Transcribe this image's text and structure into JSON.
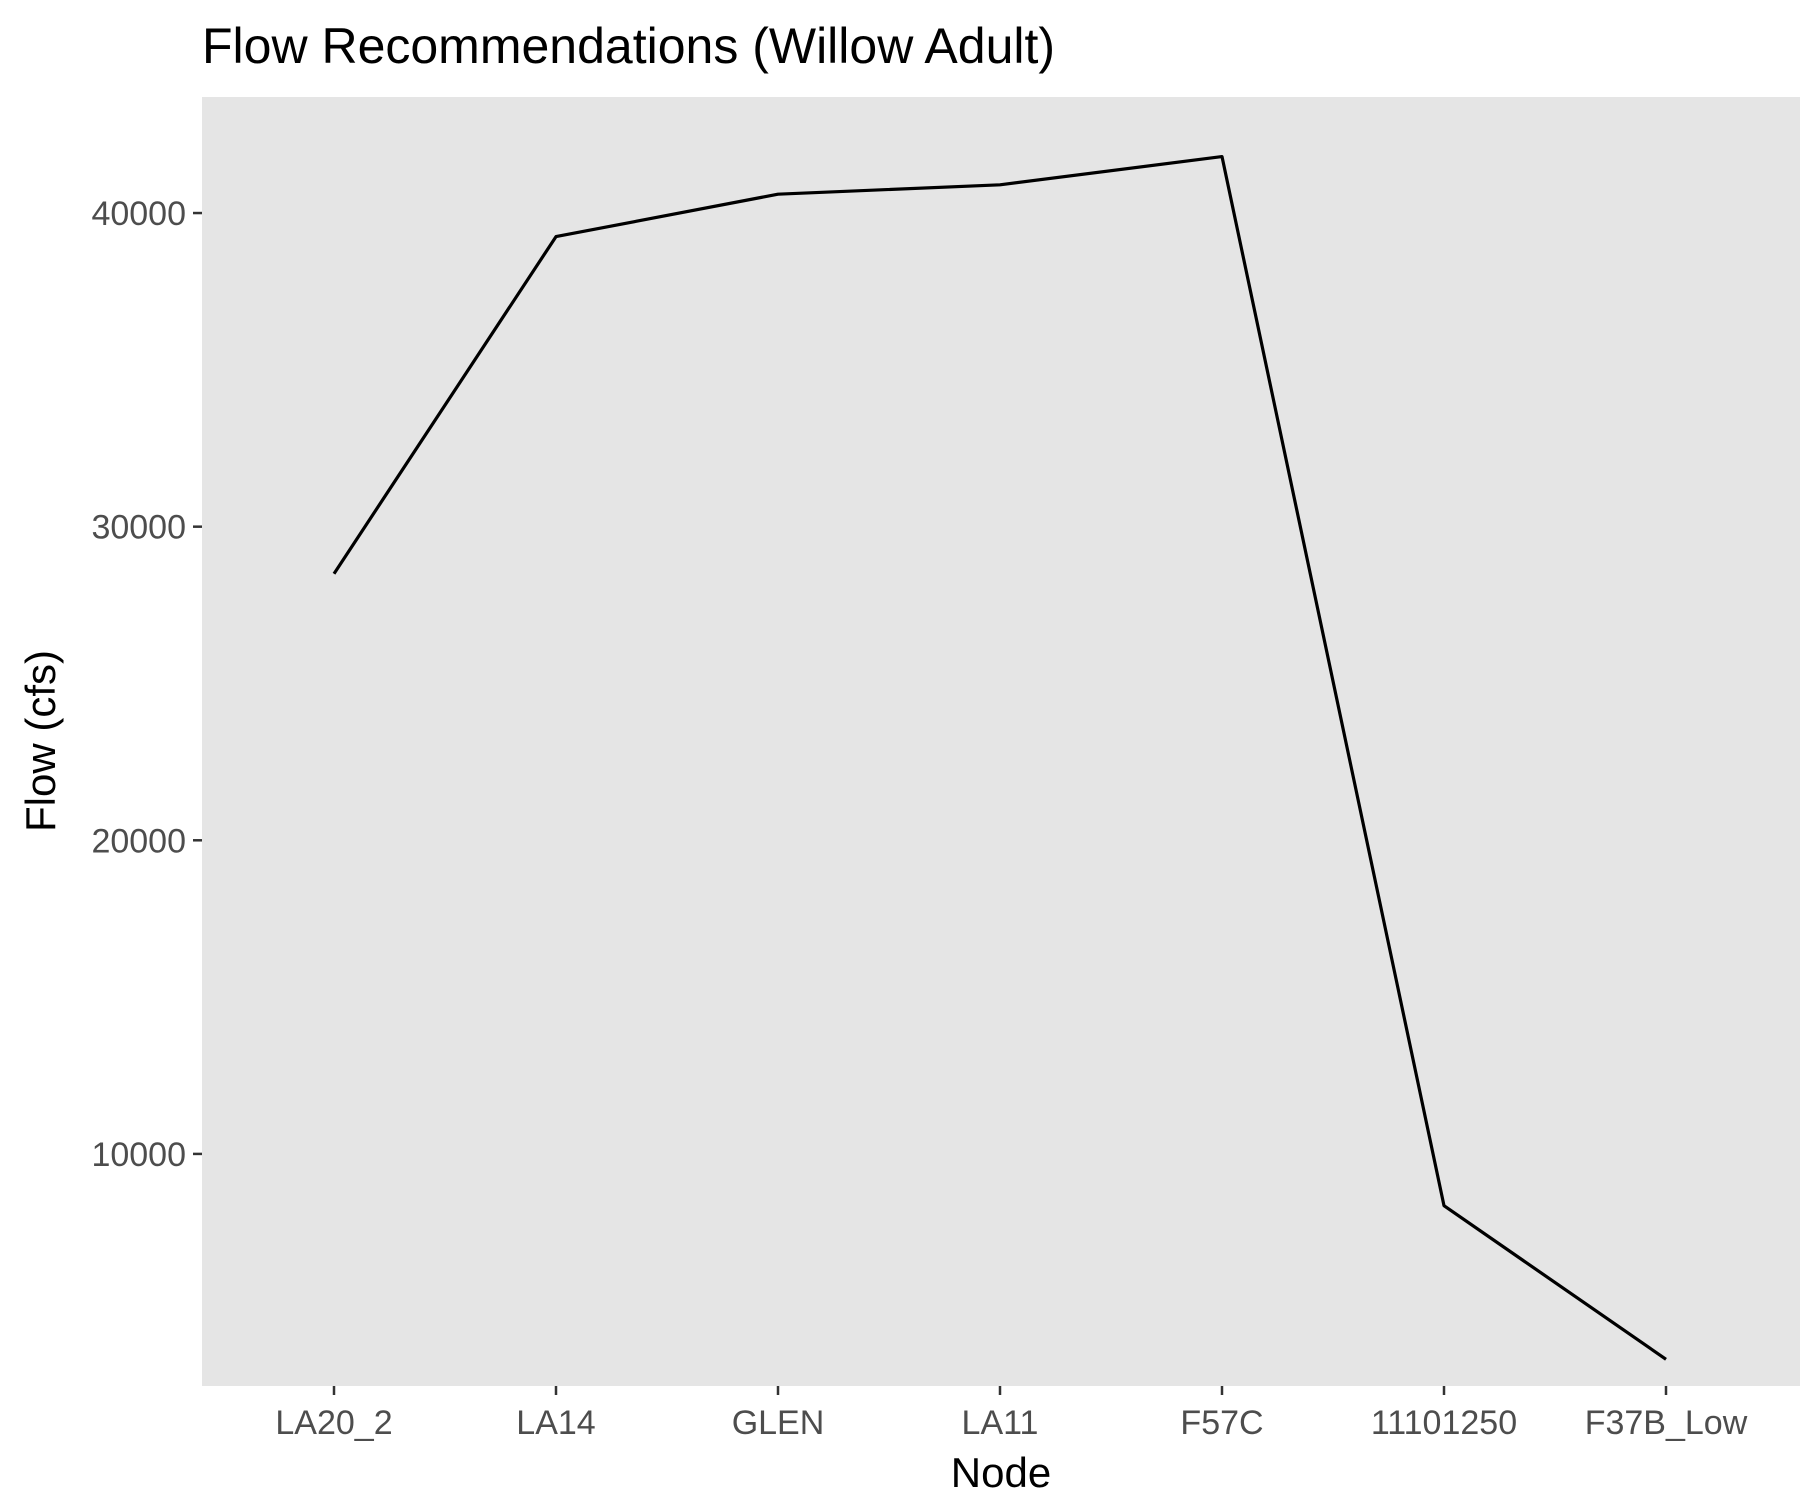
{
  "chart_data": {
    "type": "line",
    "title": "Flow Recommendations (Willow Adult)",
    "xlabel": "Node",
    "ylabel": "Flow (cfs)",
    "categories": [
      "LA20_2",
      "LA14",
      "GLEN",
      "LA11",
      "F57C",
      "11101250",
      "F37B_Low"
    ],
    "series": [
      {
        "values": [
          28500,
          39250,
          40600,
          40900,
          41800,
          8350,
          3450
        ]
      }
    ],
    "y_ticks": [
      10000,
      20000,
      30000,
      40000
    ],
    "y_tick_labels": [
      "10000",
      "20000",
      "30000",
      "40000"
    ],
    "ylim": [
      2600,
      43700
    ],
    "grid": false,
    "legend": "none",
    "colors": {
      "panel_background": "#e5e5e5",
      "line": "#000000",
      "tick_label": "#4d4d4d",
      "tick_mark": "#333333"
    }
  }
}
